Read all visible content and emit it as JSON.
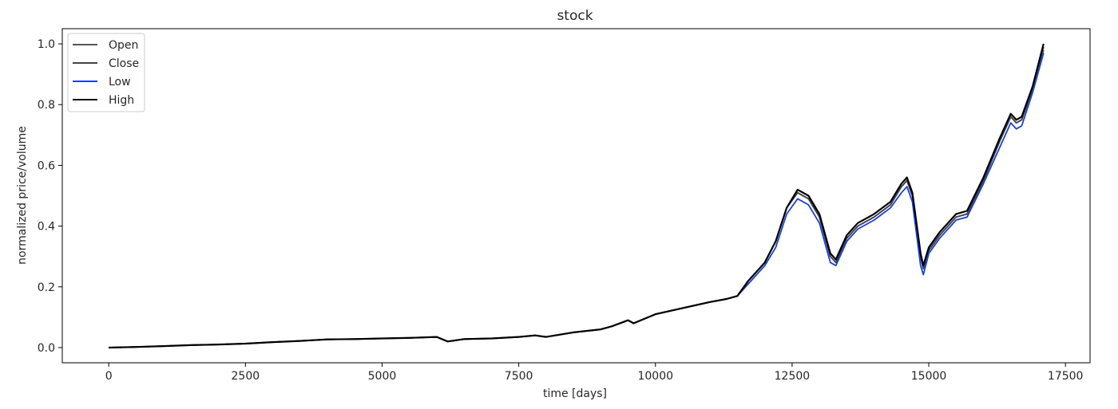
{
  "chart_data": {
    "type": "line",
    "title": "stock",
    "xlabel": "time [days]",
    "ylabel": "normalized price/volume",
    "xlim": [
      -850,
      17950
    ],
    "ylim": [
      -0.05,
      1.05
    ],
    "xticks": [
      0,
      2500,
      5000,
      7500,
      10000,
      12500,
      15000,
      17500
    ],
    "xtick_labels": [
      "0",
      "2500",
      "5000",
      "7500",
      "10000",
      "12500",
      "15000",
      "17500"
    ],
    "yticks": [
      0.0,
      0.2,
      0.4,
      0.6,
      0.8,
      1.0
    ],
    "ytick_labels": [
      "0.0",
      "0.2",
      "0.4",
      "0.6",
      "0.8",
      "1.0"
    ],
    "grid": false,
    "legend_position": "top-left",
    "x": [
      0,
      500,
      1000,
      1500,
      2000,
      2500,
      3000,
      3500,
      4000,
      4500,
      5000,
      5500,
      6000,
      6200,
      6500,
      7000,
      7500,
      7800,
      8000,
      8500,
      9000,
      9200,
      9500,
      9600,
      10000,
      10500,
      11000,
      11300,
      11500,
      11700,
      12000,
      12200,
      12400,
      12600,
      12800,
      13000,
      13200,
      13300,
      13500,
      13700,
      14000,
      14300,
      14500,
      14600,
      14700,
      14850,
      14900,
      15000,
      15200,
      15500,
      15700,
      16000,
      16300,
      16500,
      16600,
      16700,
      16900,
      17100
    ],
    "series": [
      {
        "name": "Open",
        "color": "#555555",
        "values": [
          0.0,
          0.002,
          0.005,
          0.008,
          0.01,
          0.013,
          0.018,
          0.022,
          0.027,
          0.028,
          0.03,
          0.032,
          0.035,
          0.02,
          0.028,
          0.03,
          0.035,
          0.04,
          0.035,
          0.05,
          0.06,
          0.07,
          0.09,
          0.08,
          0.11,
          0.13,
          0.15,
          0.16,
          0.17,
          0.22,
          0.28,
          0.35,
          0.46,
          0.51,
          0.49,
          0.43,
          0.3,
          0.28,
          0.36,
          0.4,
          0.43,
          0.47,
          0.53,
          0.55,
          0.5,
          0.3,
          0.26,
          0.32,
          0.37,
          0.43,
          0.44,
          0.55,
          0.68,
          0.76,
          0.74,
          0.75,
          0.85,
          0.98
        ]
      },
      {
        "name": "Close",
        "color": "#444444",
        "values": [
          0.0,
          0.002,
          0.005,
          0.008,
          0.01,
          0.013,
          0.018,
          0.022,
          0.027,
          0.028,
          0.03,
          0.032,
          0.035,
          0.02,
          0.028,
          0.03,
          0.035,
          0.04,
          0.035,
          0.05,
          0.06,
          0.07,
          0.09,
          0.08,
          0.11,
          0.13,
          0.15,
          0.16,
          0.17,
          0.22,
          0.28,
          0.35,
          0.46,
          0.51,
          0.49,
          0.43,
          0.3,
          0.28,
          0.36,
          0.4,
          0.43,
          0.47,
          0.53,
          0.55,
          0.5,
          0.3,
          0.26,
          0.32,
          0.37,
          0.43,
          0.44,
          0.55,
          0.68,
          0.76,
          0.74,
          0.75,
          0.85,
          0.99
        ]
      },
      {
        "name": "Low",
        "color": "#1a3fe0",
        "values": [
          0.0,
          0.002,
          0.005,
          0.008,
          0.01,
          0.013,
          0.018,
          0.022,
          0.027,
          0.028,
          0.03,
          0.032,
          0.035,
          0.02,
          0.028,
          0.03,
          0.035,
          0.04,
          0.035,
          0.05,
          0.06,
          0.07,
          0.09,
          0.08,
          0.11,
          0.13,
          0.15,
          0.16,
          0.17,
          0.21,
          0.27,
          0.33,
          0.44,
          0.49,
          0.47,
          0.41,
          0.28,
          0.27,
          0.35,
          0.39,
          0.42,
          0.46,
          0.51,
          0.53,
          0.48,
          0.27,
          0.24,
          0.31,
          0.36,
          0.42,
          0.43,
          0.54,
          0.66,
          0.74,
          0.72,
          0.73,
          0.84,
          0.97
        ]
      },
      {
        "name": "High",
        "color": "#000000",
        "values": [
          0.0,
          0.002,
          0.005,
          0.008,
          0.01,
          0.013,
          0.018,
          0.022,
          0.027,
          0.028,
          0.03,
          0.032,
          0.035,
          0.02,
          0.028,
          0.03,
          0.035,
          0.04,
          0.035,
          0.05,
          0.06,
          0.07,
          0.09,
          0.08,
          0.11,
          0.13,
          0.15,
          0.16,
          0.17,
          0.22,
          0.28,
          0.35,
          0.46,
          0.52,
          0.5,
          0.44,
          0.31,
          0.29,
          0.37,
          0.41,
          0.44,
          0.48,
          0.54,
          0.56,
          0.51,
          0.31,
          0.27,
          0.33,
          0.38,
          0.44,
          0.45,
          0.56,
          0.69,
          0.77,
          0.75,
          0.76,
          0.86,
          1.0
        ]
      }
    ]
  }
}
